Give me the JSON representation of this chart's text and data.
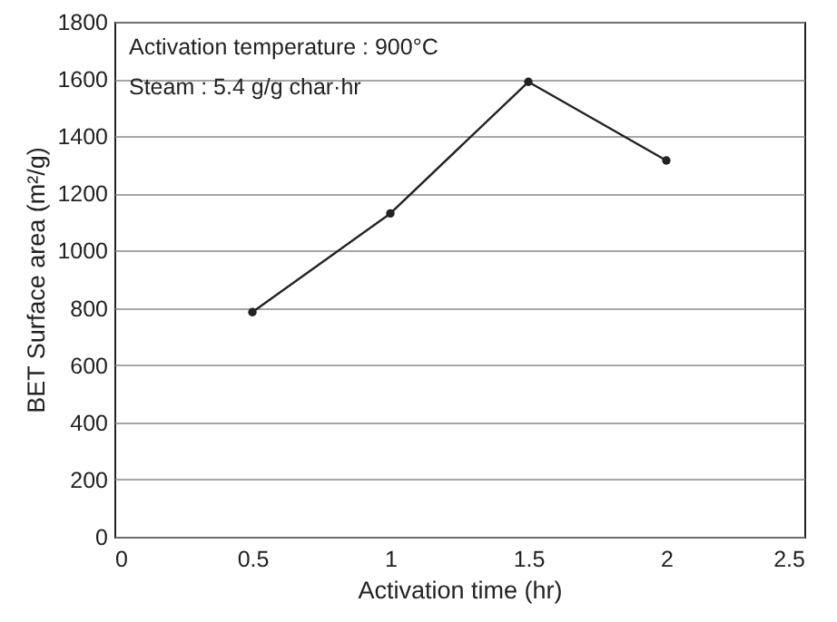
{
  "chart_data": {
    "type": "line",
    "xlabel": "Activation time (hr)",
    "ylabel": "BET Surface area (m²/g)",
    "annotations": [
      "Activation temperature : 900°C",
      "Steam : 5.4 g/g char·hr"
    ],
    "x": [
      0.5,
      1,
      1.5,
      2
    ],
    "series": [
      {
        "color": "#222222",
        "values": [
          785,
          1130,
          1590,
          1315
        ]
      }
    ],
    "xlim": [
      0,
      2.5
    ],
    "xticks": [
      0,
      0.5,
      1,
      1.5,
      2,
      2.5
    ],
    "ylim": [
      0,
      1800
    ],
    "yticks": [
      0,
      200,
      400,
      600,
      800,
      1000,
      1200,
      1400,
      1600,
      1800
    ],
    "grid": "y",
    "marker": "circle",
    "line_style": "solid"
  }
}
